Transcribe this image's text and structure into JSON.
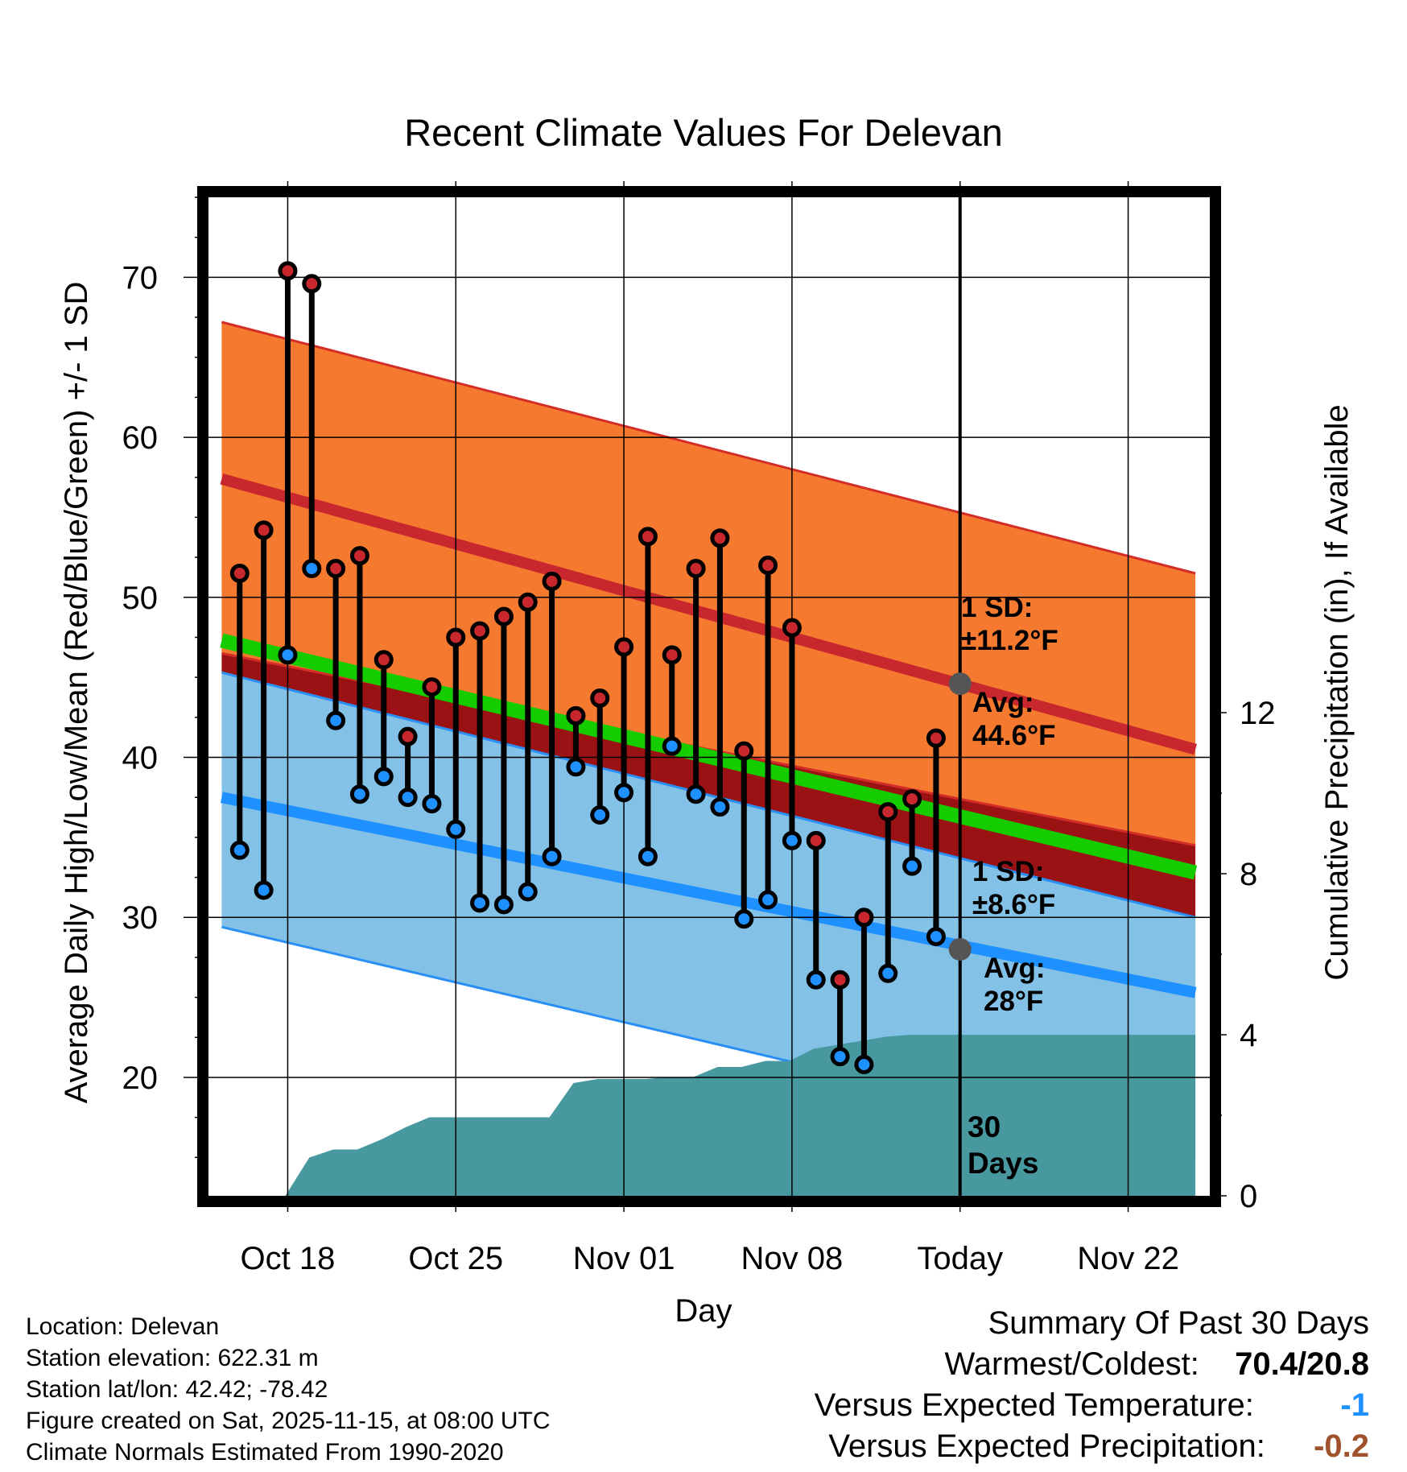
{
  "chart_data": {
    "type": "line",
    "title": "Recent Climate Values For Delevan",
    "xlabel": "Day",
    "ylabel": "Average Daily High/Low/Mean (Red/Blue/Green) +/- 1 SD",
    "y2label": "Cumulative Precipitation (in), If Available",
    "x_range": [
      -3.3,
      38.4
    ],
    "ylim": [
      12.6,
      75
    ],
    "y2lim": [
      0,
      24.8
    ],
    "x_ticks": [
      {
        "x": 0,
        "label": "Oct 18"
      },
      {
        "x": 7,
        "label": "Oct 25"
      },
      {
        "x": 14,
        "label": "Nov 01"
      },
      {
        "x": 21,
        "label": "Nov 08"
      },
      {
        "x": 28,
        "label": "Today"
      },
      {
        "x": 35,
        "label": "Nov 22"
      }
    ],
    "y_ticks": [
      20,
      30,
      40,
      50,
      60,
      70
    ],
    "y2_ticks": [
      0,
      4,
      8,
      12
    ],
    "grid": true,
    "today_x": 28,
    "normals": {
      "start_x": -2.75,
      "end_x": 37.8,
      "high_mean": [
        57.4,
        40.5
      ],
      "high_upper": [
        67.2,
        51.5
      ],
      "high_lower": [
        46.5,
        34.5
      ],
      "low_mean": [
        37.5,
        25.3
      ],
      "low_upper": [
        45.3,
        30.0
      ],
      "low_lower": [
        29.4,
        15.0
      ],
      "avg_mean": [
        47.3,
        32.8
      ]
    },
    "series": [
      {
        "name": "High",
        "color": "#c8282d",
        "values": [
          51.5,
          54.2,
          70.4,
          69.6,
          51.8,
          52.6,
          46.1,
          41.3,
          44.4,
          47.5,
          47.9,
          48.8,
          49.7,
          51.0,
          42.6,
          43.7,
          46.9,
          53.8,
          46.4,
          51.8,
          53.7,
          40.4,
          52.0,
          48.1,
          34.8,
          26.1,
          30.0,
          36.6,
          37.4,
          41.2
        ]
      },
      {
        "name": "Low",
        "color": "#1e90ff",
        "values": [
          34.2,
          31.7,
          46.4,
          51.8,
          42.3,
          37.7,
          38.8,
          37.5,
          37.1,
          35.5,
          30.9,
          30.8,
          31.6,
          33.8,
          39.4,
          36.4,
          37.8,
          33.8,
          40.7,
          37.7,
          36.9,
          29.9,
          31.1,
          34.8,
          26.1,
          21.3,
          20.8,
          26.5,
          33.2,
          28.8
        ]
      }
    ],
    "day_x": [
      -2,
      -1,
      0,
      1,
      2,
      3,
      4,
      5,
      6,
      7,
      8,
      9,
      10,
      11,
      12,
      13,
      14,
      15,
      16,
      17,
      18,
      19,
      20,
      21,
      22,
      23,
      24,
      25,
      26,
      27
    ],
    "precip_x": [
      -2.75,
      -0.1,
      0.9,
      1.9,
      2.9,
      3.9,
      4.9,
      5.9,
      6.9,
      7.9,
      8.9,
      9.9,
      10.9,
      11.9,
      12.9,
      13.9,
      14.9,
      15.9,
      16.9,
      17.9,
      18.9,
      19.9,
      20.9,
      21.9,
      22.9,
      23.9,
      24.9,
      25.9,
      28,
      37.8
    ],
    "precip_values": [
      0,
      0,
      0.95,
      1.15,
      1.15,
      1.4,
      1.7,
      1.95,
      1.95,
      1.95,
      1.95,
      1.95,
      1.95,
      2.8,
      2.9,
      2.9,
      2.9,
      2.95,
      2.95,
      3.2,
      3.2,
      3.35,
      3.35,
      3.65,
      3.75,
      3.85,
      3.95,
      4.0,
      4.0,
      4.0
    ],
    "annotations": [
      {
        "id": "high-sd",
        "lines": [
          "1 SD:",
          "±11.2°F"
        ]
      },
      {
        "id": "high-avg",
        "lines": [
          "Avg:",
          "44.6°F"
        ],
        "value": 44.6
      },
      {
        "id": "low-sd",
        "lines": [
          "1 SD:",
          "±8.6°F"
        ]
      },
      {
        "id": "low-avg",
        "lines": [
          "Avg:",
          "28°F"
        ],
        "value": 28
      },
      {
        "id": "window",
        "lines": [
          "30",
          "Days"
        ]
      }
    ],
    "colors": {
      "high_band": "#f5792e",
      "high_edge": "#d42c27",
      "high_line": "#c8282d",
      "low_band": "#83c1e6",
      "low_edge": "#2a8ff5",
      "low_line": "#1e90ff",
      "mean_band": "#14cc00",
      "overlap": "#9b1214",
      "precip": "#47999f",
      "avg_dot": "#555555",
      "annotation": "#555555"
    }
  },
  "footer": {
    "location": "Location: Delevan",
    "elevation": "Station elevation: 622.31 m",
    "latlon": "Station lat/lon: 42.42; -78.42",
    "created": "Figure created on Sat, 2025-11-15, at 08:00 UTC",
    "normals": "Climate Normals Estimated From 1990-2020"
  },
  "summary": {
    "title": "Summary Of Past 30 Days",
    "warmest_label": "Warmest/Coldest:",
    "warmest_value": "70.4/20.8",
    "temp_label": "Versus Expected Temperature:",
    "temp_value": "-1",
    "temp_color": "#1e90ff",
    "precip_label": "Versus Expected Precipitation:",
    "precip_value": "-0.2",
    "precip_color": "#a0522d"
  }
}
